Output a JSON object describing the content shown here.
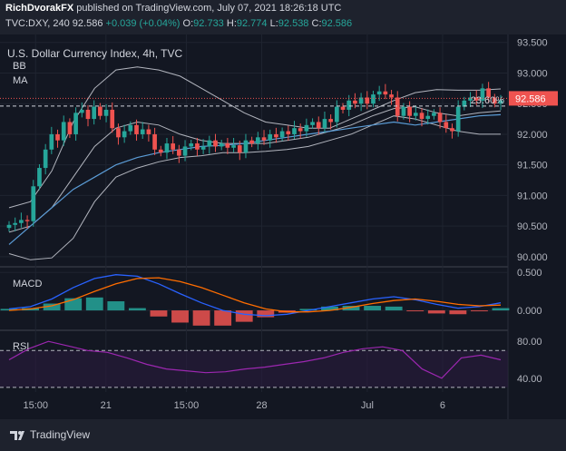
{
  "header": {
    "author": "RichDvorakFX",
    "published": "published on TradingView.com, July 07, 2021 18:26:18 UTC",
    "symbol": "TVC:DXY, 240",
    "last": "92.586",
    "change": "+0.039 (+0.04%)",
    "o_label": "O:",
    "o": "92.733",
    "h_label": "H:",
    "h": "92.774",
    "l_label": "L:",
    "l": "92.538",
    "c_label": "C:",
    "c": "92.586"
  },
  "legend": {
    "title": "U.S. Dollar Currency Index, 4h, TVC",
    "bb": "BB",
    "ma": "MA",
    "macd": "MACD",
    "rsi": "RSI"
  },
  "annotations": {
    "fib_label": "23.60%",
    "price_tag": "92.586"
  },
  "footer": {
    "brand": "TradingView"
  },
  "colors": {
    "up": "#26a69a",
    "down": "#ef5350",
    "ma": "#5b9cd6",
    "bb": "#b2b5be",
    "macd_line": "#2962ff",
    "signal_line": "#ff6d00",
    "rsi": "#9c27b0"
  },
  "chart_data": [
    {
      "type": "candlestick",
      "title": "U.S. Dollar Currency Index, 4h, TVC",
      "x_ticks": [
        "15:00",
        "21",
        "15:00",
        "28",
        "Jul",
        "6"
      ],
      "y_ticks": [
        93.5,
        93.0,
        92.5,
        92.0,
        91.5,
        91.0,
        90.5,
        90.0
      ],
      "y_tick_labels": [
        "93.500",
        "93.000",
        "92.500",
        "92.000",
        "91.500",
        "91.000",
        "90.500",
        "90.000"
      ],
      "ylim": [
        89.85,
        93.6
      ],
      "closes": [
        90.52,
        90.55,
        90.6,
        90.58,
        91.15,
        91.45,
        91.75,
        92.0,
        91.9,
        92.2,
        92.0,
        92.35,
        92.4,
        92.25,
        92.45,
        92.3,
        92.4,
        92.1,
        91.95,
        92.05,
        92.15,
        92.0,
        92.08,
        92.0,
        91.75,
        91.7,
        91.85,
        91.75,
        91.65,
        91.8,
        91.85,
        91.75,
        91.8,
        91.9,
        91.8,
        91.85,
        91.78,
        91.82,
        91.7,
        91.9,
        91.85,
        91.95,
        91.9,
        92.0,
        91.95,
        92.05,
        92.0,
        92.1,
        92.05,
        92.15,
        92.2,
        92.1,
        92.25,
        92.2,
        92.45,
        92.4,
        92.55,
        92.5,
        92.6,
        92.5,
        92.65,
        92.7,
        92.65,
        92.6,
        92.3,
        92.45,
        92.3,
        92.35,
        92.25,
        92.3,
        92.35,
        92.2,
        92.1,
        92.05,
        92.45,
        92.55,
        92.6,
        92.55,
        92.75,
        92.6,
        92.5,
        92.55
      ],
      "fib_level": {
        "label": "23.60%",
        "value": 92.46
      },
      "bb_upper": [
        90.8,
        90.9,
        91.4,
        92.2,
        92.75,
        93.05,
        93.1,
        93.05,
        92.95,
        92.75,
        92.55,
        92.35,
        92.2,
        92.15,
        92.1,
        92.1,
        92.25,
        92.4,
        92.55,
        92.68,
        92.73,
        92.72,
        92.72,
        92.74
      ],
      "bb_middle": [
        90.4,
        90.5,
        90.8,
        91.3,
        91.8,
        92.1,
        92.2,
        92.15,
        92.0,
        91.9,
        91.85,
        91.85,
        91.85,
        91.9,
        91.95,
        92.05,
        92.15,
        92.3,
        92.42,
        92.45,
        92.35,
        92.3,
        92.35,
        92.38
      ],
      "bb_lower": [
        90.05,
        89.95,
        89.98,
        90.3,
        90.9,
        91.3,
        91.45,
        91.55,
        91.62,
        91.65,
        91.7,
        91.7,
        91.72,
        91.75,
        91.8,
        91.9,
        92.0,
        92.15,
        92.3,
        92.25,
        92.15,
        92.05,
        92.0,
        92.0
      ],
      "ma": [
        90.2,
        90.5,
        90.8,
        91.1,
        91.3,
        91.5,
        91.62,
        91.7,
        91.75,
        91.8,
        91.82,
        91.85,
        91.9,
        91.95,
        92.0,
        92.05,
        92.1,
        92.15,
        92.2,
        92.15,
        92.2,
        92.25,
        92.3,
        92.32
      ]
    },
    {
      "type": "line",
      "title": "MACD",
      "y_ticks": [
        0.5,
        0.0
      ],
      "y_tick_labels": [
        "0.500",
        "0.000"
      ],
      "ylim": [
        -0.25,
        0.55
      ],
      "series": [
        {
          "values": [
            0.02,
            0.05,
            0.15,
            0.3,
            0.42,
            0.47,
            0.45,
            0.35,
            0.22,
            0.1,
            0.0,
            -0.05,
            -0.07,
            -0.05,
            0.0,
            0.05,
            0.1,
            0.15,
            0.18,
            0.14,
            0.08,
            0.03,
            0.05,
            0.1
          ]
        },
        {
          "values": [
            0.0,
            0.02,
            0.06,
            0.14,
            0.25,
            0.35,
            0.42,
            0.43,
            0.38,
            0.3,
            0.2,
            0.1,
            0.02,
            -0.02,
            -0.02,
            0.0,
            0.04,
            0.09,
            0.13,
            0.15,
            0.12,
            0.08,
            0.06,
            0.07
          ]
        }
      ],
      "histogram": [
        0.02,
        0.03,
        0.09,
        0.16,
        0.17,
        0.12,
        0.03,
        -0.08,
        -0.16,
        -0.2,
        -0.2,
        -0.15,
        -0.09,
        -0.03,
        0.02,
        0.05,
        0.06,
        0.06,
        0.05,
        -0.01,
        -0.04,
        -0.05,
        -0.01,
        0.03
      ]
    },
    {
      "type": "line",
      "title": "RSI",
      "y_ticks": [
        80,
        40
      ],
      "y_tick_labels": [
        "80.00",
        "40.00"
      ],
      "ylim": [
        25,
        90
      ],
      "bands": [
        70,
        30
      ],
      "series": [
        {
          "values": [
            60,
            72,
            80,
            75,
            70,
            68,
            62,
            55,
            50,
            48,
            46,
            47,
            50,
            52,
            55,
            58,
            62,
            68,
            72,
            74,
            70,
            50,
            40,
            62,
            65,
            60
          ]
        }
      ]
    }
  ]
}
